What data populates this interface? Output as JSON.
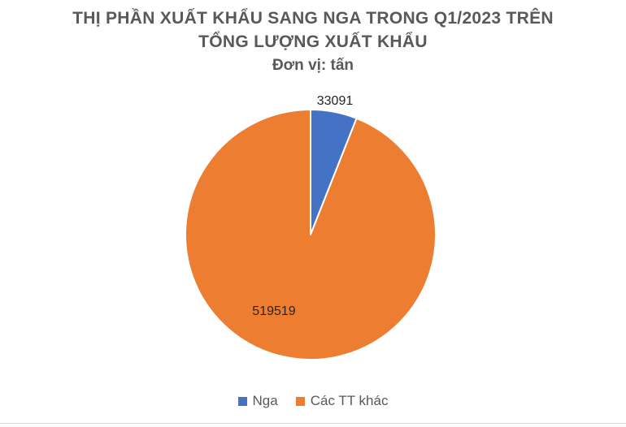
{
  "chart_data": {
    "type": "pie",
    "title": "THỊ PHẦN XUẤT KHẨU SANG NGA TRONG Q1/2023 TRÊN",
    "title_line2": "TỔNG LƯỢNG XUẤT KHẨU",
    "subtitle": "Đơn vị: tấn",
    "categories": [
      "Nga",
      "Các TT khác"
    ],
    "values": [
      33091,
      519519
    ],
    "data_labels": [
      "33091",
      "519519"
    ],
    "colors": [
      "#4472c4",
      "#ed7d31"
    ],
    "start_angle_deg": 0,
    "direction": "clockwise",
    "legend_position": "bottom"
  }
}
